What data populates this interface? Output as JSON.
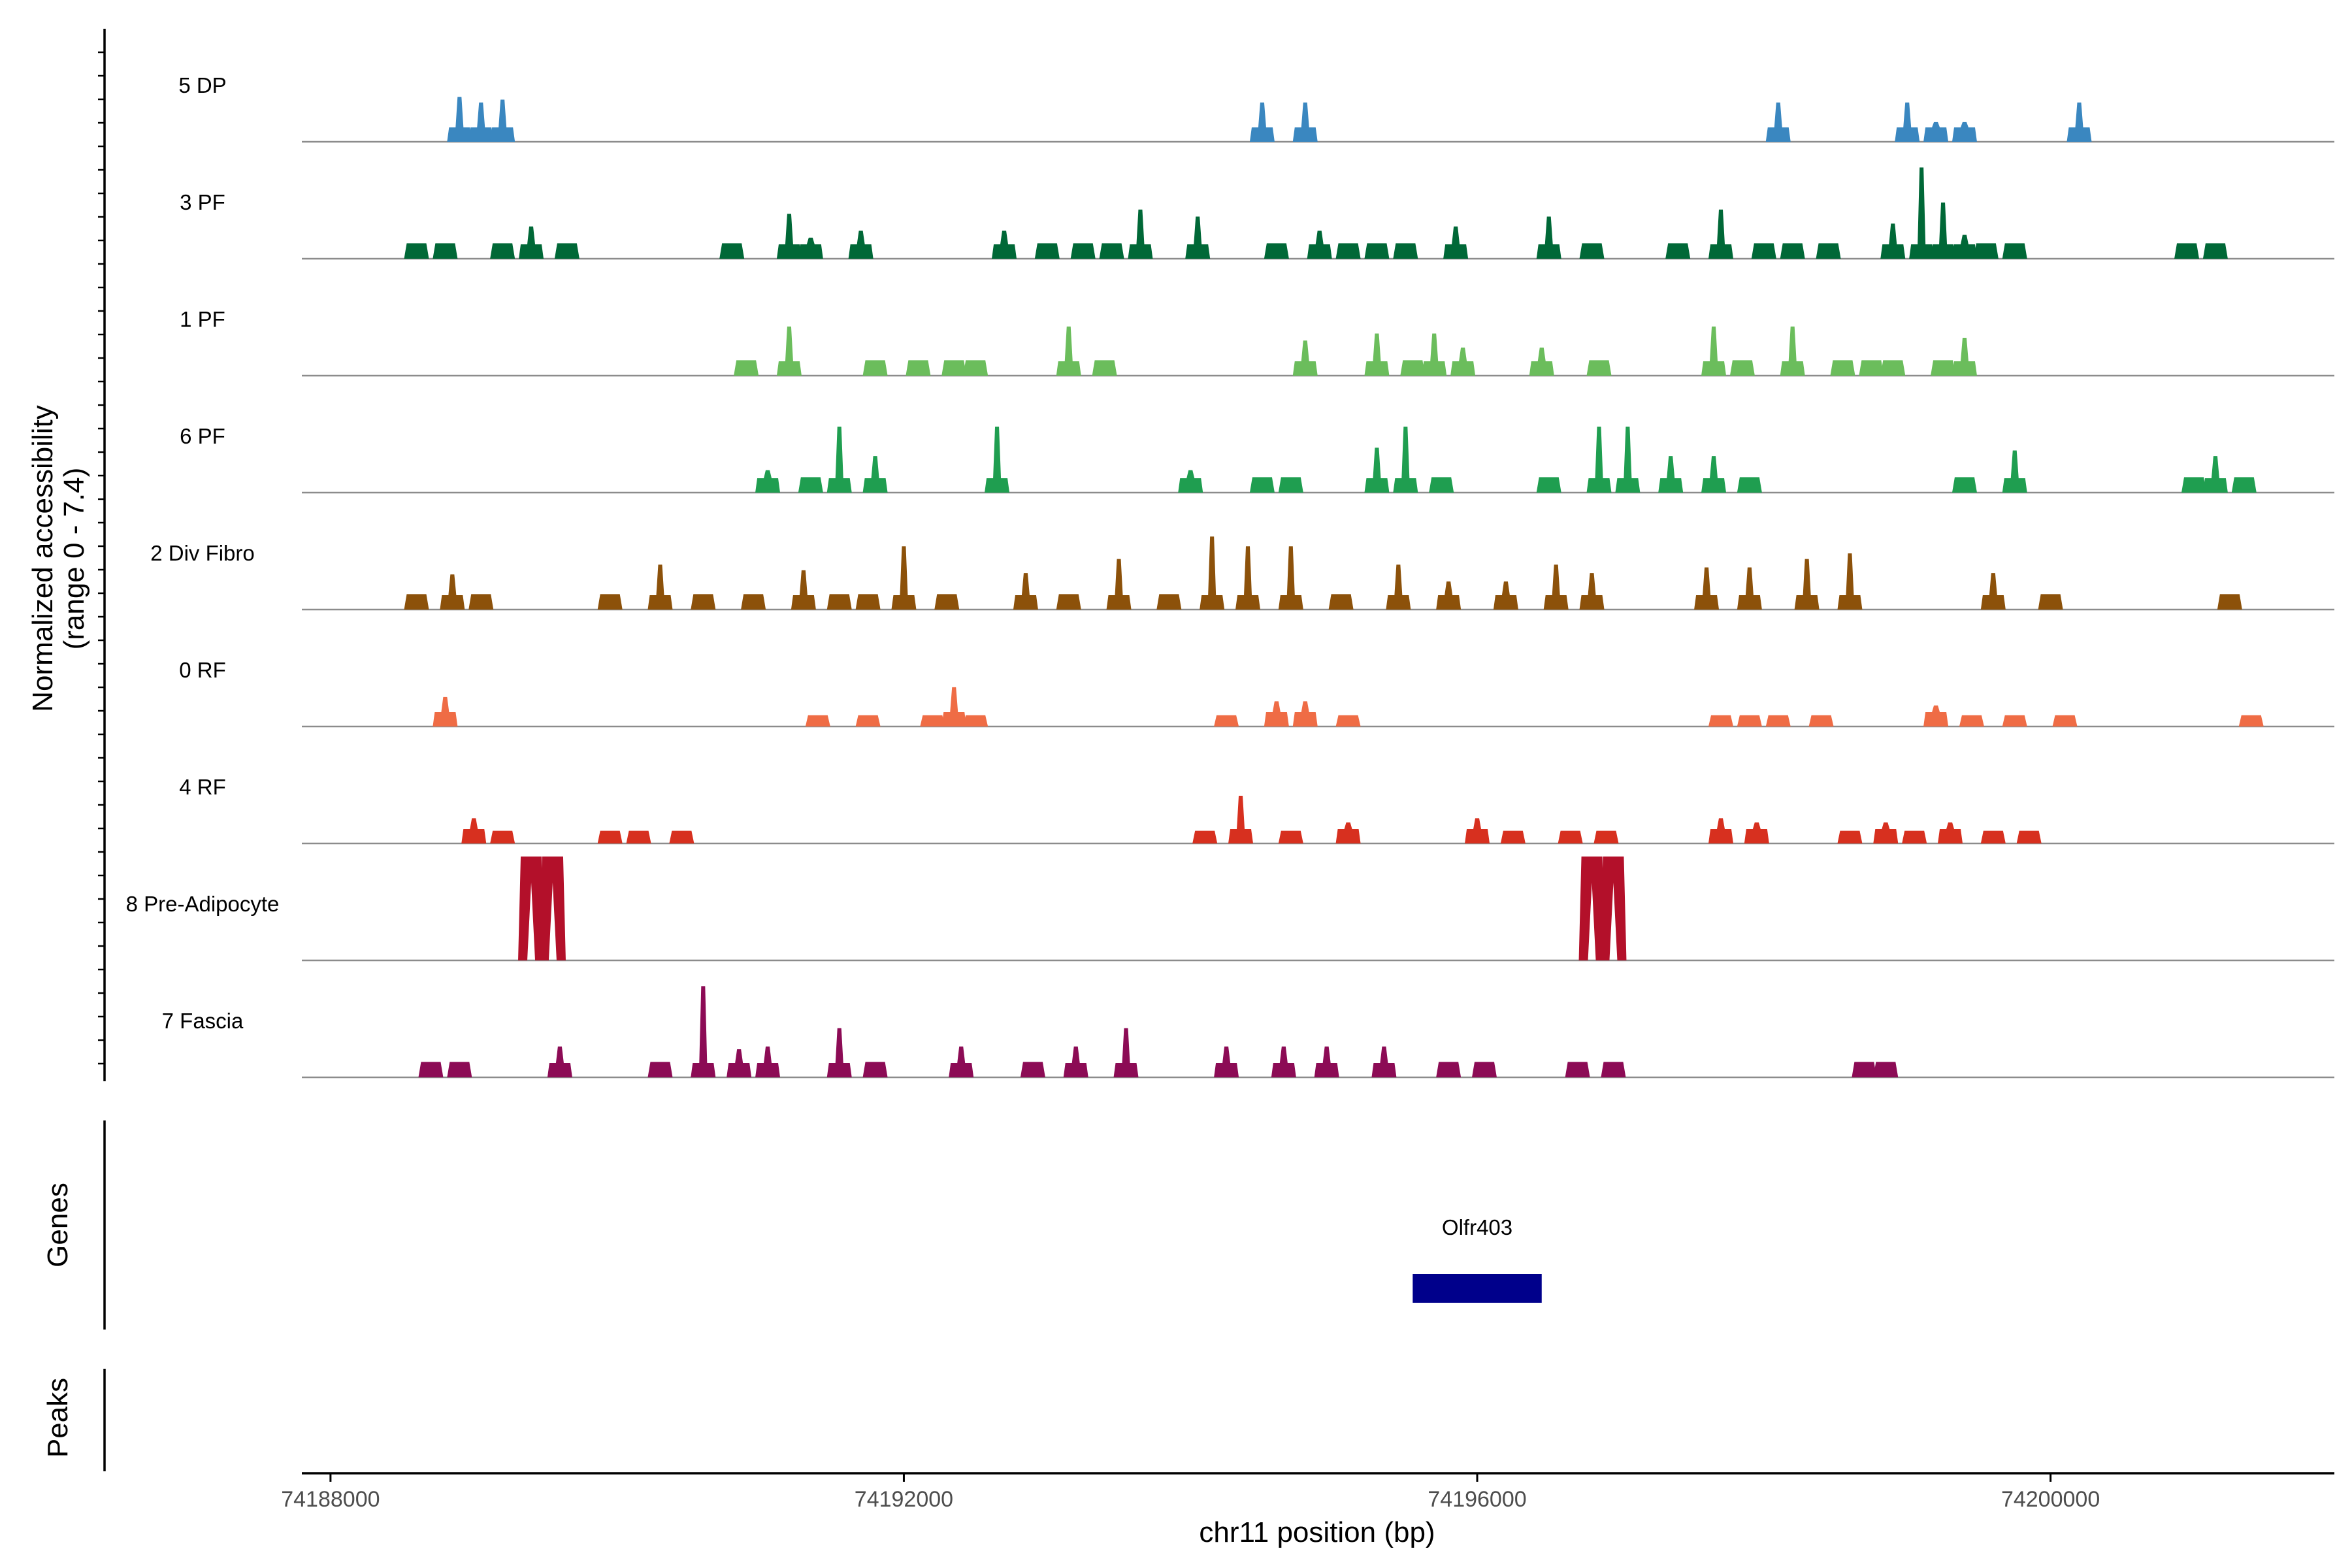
{
  "chart_data": {
    "type": "area",
    "title": "",
    "xlabel": "chr11 position (bp)",
    "ylabel": "Normalized accessibility",
    "ylabel_range": "(range 0 - 7.4)",
    "ylim": [
      0,
      7.4
    ],
    "xlim": [
      74187800,
      74201980
    ],
    "x_ticks": [
      74188000,
      74192000,
      74196000,
      74200000
    ],
    "x_tick_labels": [
      "74188000",
      "74192000",
      "74196000",
      "74200000"
    ],
    "tracks": [
      {
        "name": "5 DP",
        "color": "#3a87c0",
        "peaks": [
          [
            74188900,
            3.2
          ],
          [
            74189050,
            2.8
          ],
          [
            74189200,
            3.0
          ],
          [
            74194500,
            2.8
          ],
          [
            74194800,
            2.8
          ],
          [
            74198100,
            2.8
          ],
          [
            74199000,
            2.8
          ],
          [
            74199200,
            1.4
          ],
          [
            74199400,
            1.4
          ],
          [
            74200200,
            2.8
          ]
        ]
      },
      {
        "name": "3 PF",
        "color": "#006837",
        "peaks": [
          [
            74188600,
            1.1
          ],
          [
            74188800,
            1.1
          ],
          [
            74189200,
            1.1
          ],
          [
            74189400,
            2.3
          ],
          [
            74189650,
            1.1
          ],
          [
            74190800,
            1.1
          ],
          [
            74191200,
            3.2
          ],
          [
            74191350,
            1.5
          ],
          [
            74191700,
            2.0
          ],
          [
            74192700,
            2.0
          ],
          [
            74193000,
            1.1
          ],
          [
            74193250,
            1.1
          ],
          [
            74193450,
            1.1
          ],
          [
            74193650,
            3.5
          ],
          [
            74194050,
            3.0
          ],
          [
            74194600,
            1.1
          ],
          [
            74194900,
            2.0
          ],
          [
            74195100,
            1.1
          ],
          [
            74195300,
            1.1
          ],
          [
            74195500,
            1.1
          ],
          [
            74195850,
            2.3
          ],
          [
            74196500,
            3.0
          ],
          [
            74196800,
            1.1
          ],
          [
            74197400,
            1.1
          ],
          [
            74197700,
            3.5
          ],
          [
            74198000,
            1.1
          ],
          [
            74198200,
            1.1
          ],
          [
            74198450,
            1.1
          ],
          [
            74198900,
            2.5
          ],
          [
            74199100,
            6.5
          ],
          [
            74199250,
            4.0
          ],
          [
            74199400,
            1.7
          ],
          [
            74199550,
            1.1
          ],
          [
            74199750,
            1.1
          ],
          [
            74200950,
            1.1
          ],
          [
            74201150,
            1.1
          ]
        ]
      },
      {
        "name": "1 PF",
        "color": "#6bbd5c",
        "peaks": [
          [
            74190900,
            1.1
          ],
          [
            74191200,
            3.5
          ],
          [
            74191800,
            1.1
          ],
          [
            74192100,
            1.1
          ],
          [
            74192350,
            1.1
          ],
          [
            74192500,
            1.1
          ],
          [
            74193150,
            3.5
          ],
          [
            74193400,
            1.1
          ],
          [
            74194800,
            2.5
          ],
          [
            74195300,
            3.0
          ],
          [
            74195550,
            1.1
          ],
          [
            74195700,
            3.0
          ],
          [
            74195900,
            2.0
          ],
          [
            74196450,
            2.0
          ],
          [
            74196850,
            1.1
          ],
          [
            74197650,
            3.5
          ],
          [
            74197850,
            1.1
          ],
          [
            74198200,
            3.5
          ],
          [
            74198550,
            1.1
          ],
          [
            74198750,
            1.1
          ],
          [
            74198900,
            1.1
          ],
          [
            74199250,
            1.1
          ],
          [
            74199400,
            2.7
          ]
        ]
      },
      {
        "name": "6 PF",
        "color": "#1f9e50",
        "peaks": [
          [
            74191050,
            1.6
          ],
          [
            74191350,
            1.1
          ],
          [
            74191550,
            4.7
          ],
          [
            74191800,
            2.6
          ],
          [
            74192650,
            4.7
          ],
          [
            74194000,
            1.6
          ],
          [
            74194500,
            1.1
          ],
          [
            74194700,
            1.1
          ],
          [
            74195300,
            3.2
          ],
          [
            74195500,
            4.7
          ],
          [
            74195750,
            1.1
          ],
          [
            74196500,
            1.1
          ],
          [
            74196850,
            4.7
          ],
          [
            74197050,
            4.7
          ],
          [
            74197350,
            2.6
          ],
          [
            74197650,
            2.6
          ],
          [
            74197900,
            1.1
          ],
          [
            74199400,
            1.1
          ],
          [
            74199750,
            3.0
          ],
          [
            74201000,
            1.1
          ],
          [
            74201150,
            2.6
          ],
          [
            74201350,
            1.1
          ]
        ]
      },
      {
        "name": "2 Div Fibro",
        "color": "#8c510a",
        "peaks": [
          [
            74188600,
            1.1
          ],
          [
            74188850,
            2.5
          ],
          [
            74189050,
            1.1
          ],
          [
            74189950,
            1.1
          ],
          [
            74190300,
            3.2
          ],
          [
            74190600,
            1.1
          ],
          [
            74190950,
            1.1
          ],
          [
            74191300,
            2.8
          ],
          [
            74191550,
            1.1
          ],
          [
            74191750,
            1.1
          ],
          [
            74192000,
            4.5
          ],
          [
            74192300,
            1.1
          ],
          [
            74192850,
            2.6
          ],
          [
            74193150,
            1.1
          ],
          [
            74193500,
            3.6
          ],
          [
            74193850,
            1.1
          ],
          [
            74194150,
            5.2
          ],
          [
            74194400,
            4.5
          ],
          [
            74194700,
            4.5
          ],
          [
            74195050,
            1.1
          ],
          [
            74195450,
            3.2
          ],
          [
            74195800,
            2.0
          ],
          [
            74196200,
            2.0
          ],
          [
            74196550,
            3.2
          ],
          [
            74196800,
            2.6
          ],
          [
            74197600,
            3.0
          ],
          [
            74197900,
            3.0
          ],
          [
            74198300,
            3.6
          ],
          [
            74198600,
            4.0
          ],
          [
            74199600,
            2.6
          ],
          [
            74200000,
            1.1
          ],
          [
            74201250,
            1.1
          ]
        ]
      },
      {
        "name": "0 RF",
        "color": "#ef6c45",
        "peaks": [
          [
            74188800,
            2.1
          ],
          [
            74191400,
            0.8
          ],
          [
            74191750,
            0.8
          ],
          [
            74192200,
            0.8
          ],
          [
            74192350,
            2.8
          ],
          [
            74192500,
            0.8
          ],
          [
            74194250,
            0.8
          ],
          [
            74194600,
            1.8
          ],
          [
            74194800,
            1.8
          ],
          [
            74195100,
            0.8
          ],
          [
            74197700,
            0.8
          ],
          [
            74197900,
            0.8
          ],
          [
            74198100,
            0.8
          ],
          [
            74198400,
            0.8
          ],
          [
            74199200,
            1.5
          ],
          [
            74199450,
            0.8
          ],
          [
            74199750,
            0.8
          ],
          [
            74200100,
            0.8
          ],
          [
            74201400,
            0.8
          ]
        ]
      },
      {
        "name": "4 RF",
        "color": "#d7301f",
        "peaks": [
          [
            74189000,
            1.8
          ],
          [
            74189200,
            0.9
          ],
          [
            74189950,
            0.9
          ],
          [
            74190150,
            0.9
          ],
          [
            74190450,
            0.9
          ],
          [
            74194100,
            0.9
          ],
          [
            74194350,
            3.4
          ],
          [
            74194700,
            0.9
          ],
          [
            74195100,
            1.5
          ],
          [
            74196000,
            1.8
          ],
          [
            74196250,
            0.9
          ],
          [
            74196650,
            0.9
          ],
          [
            74196900,
            0.9
          ],
          [
            74197700,
            1.8
          ],
          [
            74197950,
            1.5
          ],
          [
            74198600,
            0.9
          ],
          [
            74198850,
            1.5
          ],
          [
            74199050,
            0.9
          ],
          [
            74199300,
            1.5
          ],
          [
            74199600,
            0.9
          ],
          [
            74199850,
            0.9
          ]
        ]
      },
      {
        "name": "8 Pre-Adipocyte",
        "color": "#b3102a",
        "peaks": [
          [
            74189400,
            7.4
          ],
          [
            74189550,
            7.4
          ],
          [
            74196800,
            7.4
          ],
          [
            74196950,
            7.4
          ]
        ]
      },
      {
        "name": "7 Fascia",
        "color": "#8c0b55",
        "peaks": [
          [
            74188700,
            1.1
          ],
          [
            74188900,
            1.1
          ],
          [
            74189600,
            2.2
          ],
          [
            74190300,
            1.1
          ],
          [
            74190600,
            6.5
          ],
          [
            74190850,
            2.0
          ],
          [
            74191050,
            2.2
          ],
          [
            74191550,
            3.5
          ],
          [
            74191800,
            1.1
          ],
          [
            74192400,
            2.2
          ],
          [
            74192900,
            1.1
          ],
          [
            74193200,
            2.2
          ],
          [
            74193550,
            3.5
          ],
          [
            74194250,
            2.2
          ],
          [
            74194650,
            2.2
          ],
          [
            74194950,
            2.2
          ],
          [
            74195350,
            2.2
          ],
          [
            74195800,
            1.1
          ],
          [
            74196050,
            1.1
          ],
          [
            74196700,
            1.1
          ],
          [
            74196950,
            1.1
          ],
          [
            74198700,
            1.1
          ],
          [
            74198850,
            1.1
          ]
        ]
      }
    ],
    "genes_panel_label": "Genes",
    "peaks_panel_label": "Peaks",
    "genes": [
      {
        "name": "Olfr403",
        "start": 74195550,
        "end": 74196450,
        "color": "#00008b"
      }
    ]
  }
}
